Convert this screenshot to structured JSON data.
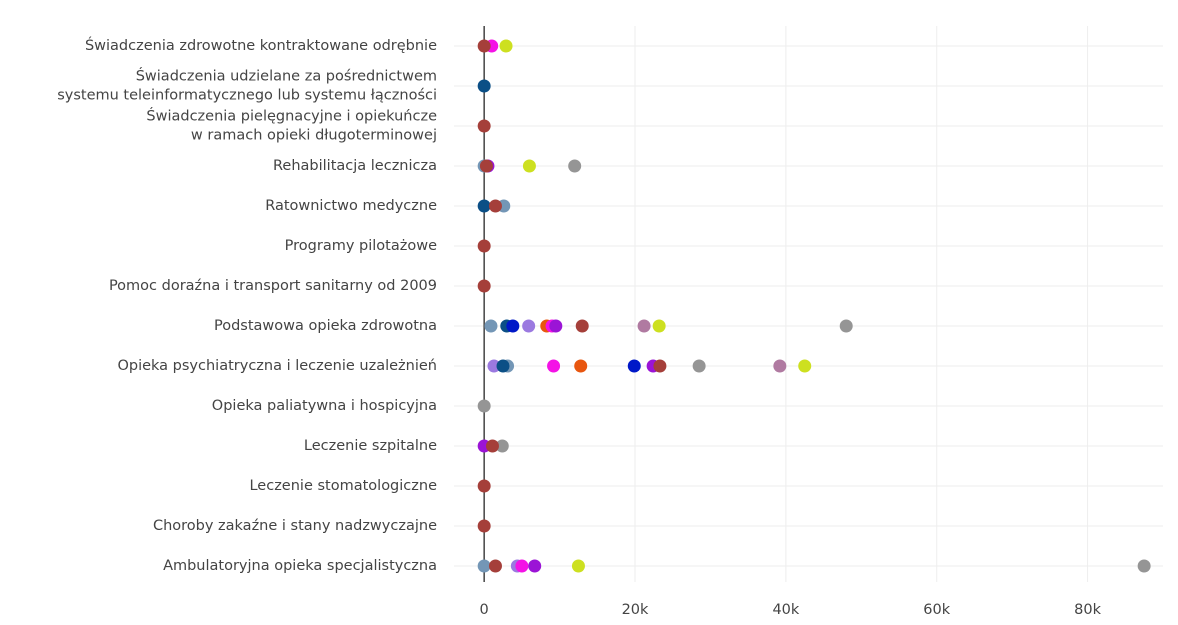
{
  "chart_data": {
    "type": "dot",
    "categories": [
      "Świadczenia zdrowotne kontraktowane odrębnie",
      "Świadczenia udzielane za pośrednictwem\nsystemu teleinformatycznego lub systemu łączności",
      "Świadczenia pielęgnacyjne i opiekuńcze\nw ramach opieki długoterminowej",
      "Rehabilitacja lecznicza",
      "Ratownictwo medyczne",
      "Programy pilotażowe",
      "Pomoc doraźna i transport sanitarny od 2009",
      "Podstawowa opieka zdrowotna",
      "Opieka psychiatryczna i leczenie uzależnień",
      "Opieka paliatywna i hospicyjna",
      "Leczenie szpitalne",
      "Leczenie stomatologiczne",
      "Choroby zakaźne i stany nadzwyczajne",
      "Ambulatoryjna opieka specjalistyczna"
    ],
    "series": [
      {
        "color": "#959595",
        "values": [
          null,
          null,
          null,
          12000,
          null,
          null,
          null,
          48000,
          28500,
          0,
          2400,
          null,
          null,
          87500
        ]
      },
      {
        "color": "#b07aa1",
        "values": [
          null,
          null,
          null,
          null,
          null,
          null,
          null,
          21200,
          39200,
          null,
          null,
          null,
          null,
          null
        ]
      },
      {
        "color": "#cde020",
        "values": [
          2900,
          null,
          null,
          6000,
          null,
          null,
          null,
          23200,
          42500,
          null,
          null,
          null,
          null,
          12500
        ]
      },
      {
        "color": "#7396b6",
        "values": [
          null,
          null,
          null,
          0,
          2600,
          null,
          null,
          900,
          3100,
          null,
          null,
          null,
          null,
          0
        ]
      },
      {
        "color": "#9b79e0",
        "values": [
          null,
          null,
          null,
          null,
          null,
          null,
          null,
          5900,
          1300,
          null,
          null,
          null,
          null,
          4400
        ]
      },
      {
        "color": "#0b4f86",
        "values": [
          null,
          0,
          null,
          null,
          0,
          null,
          null,
          3000,
          2500,
          null,
          null,
          null,
          null,
          null
        ]
      },
      {
        "color": "#0018c8",
        "values": [
          null,
          null,
          null,
          null,
          null,
          null,
          null,
          3800,
          19900,
          null,
          null,
          null,
          null,
          null
        ]
      },
      {
        "color": "#e8560f",
        "values": [
          null,
          null,
          null,
          null,
          null,
          null,
          null,
          8300,
          12800,
          null,
          null,
          null,
          null,
          null
        ]
      },
      {
        "color": "#f412e6",
        "values": [
          1000,
          null,
          null,
          null,
          null,
          null,
          null,
          9000,
          9200,
          null,
          null,
          null,
          null,
          5000
        ]
      },
      {
        "color": "#9b14d6",
        "values": [
          null,
          null,
          null,
          500,
          null,
          null,
          null,
          9500,
          22400,
          null,
          0,
          null,
          null,
          6700
        ]
      },
      {
        "color": "#a53f3a",
        "values": [
          0,
          null,
          0,
          300,
          1500,
          0,
          0,
          13000,
          23300,
          null,
          1100,
          0,
          0,
          1500
        ]
      }
    ],
    "xlim": [
      -4000,
      90000
    ],
    "xticks": [
      0,
      {
        "value": 20000,
        "label": "20k"
      },
      {
        "value": 40000,
        "label": "40k"
      },
      {
        "value": 60000,
        "label": "60k"
      },
      {
        "value": 80000,
        "label": "80k"
      }
    ],
    "grid": true
  }
}
